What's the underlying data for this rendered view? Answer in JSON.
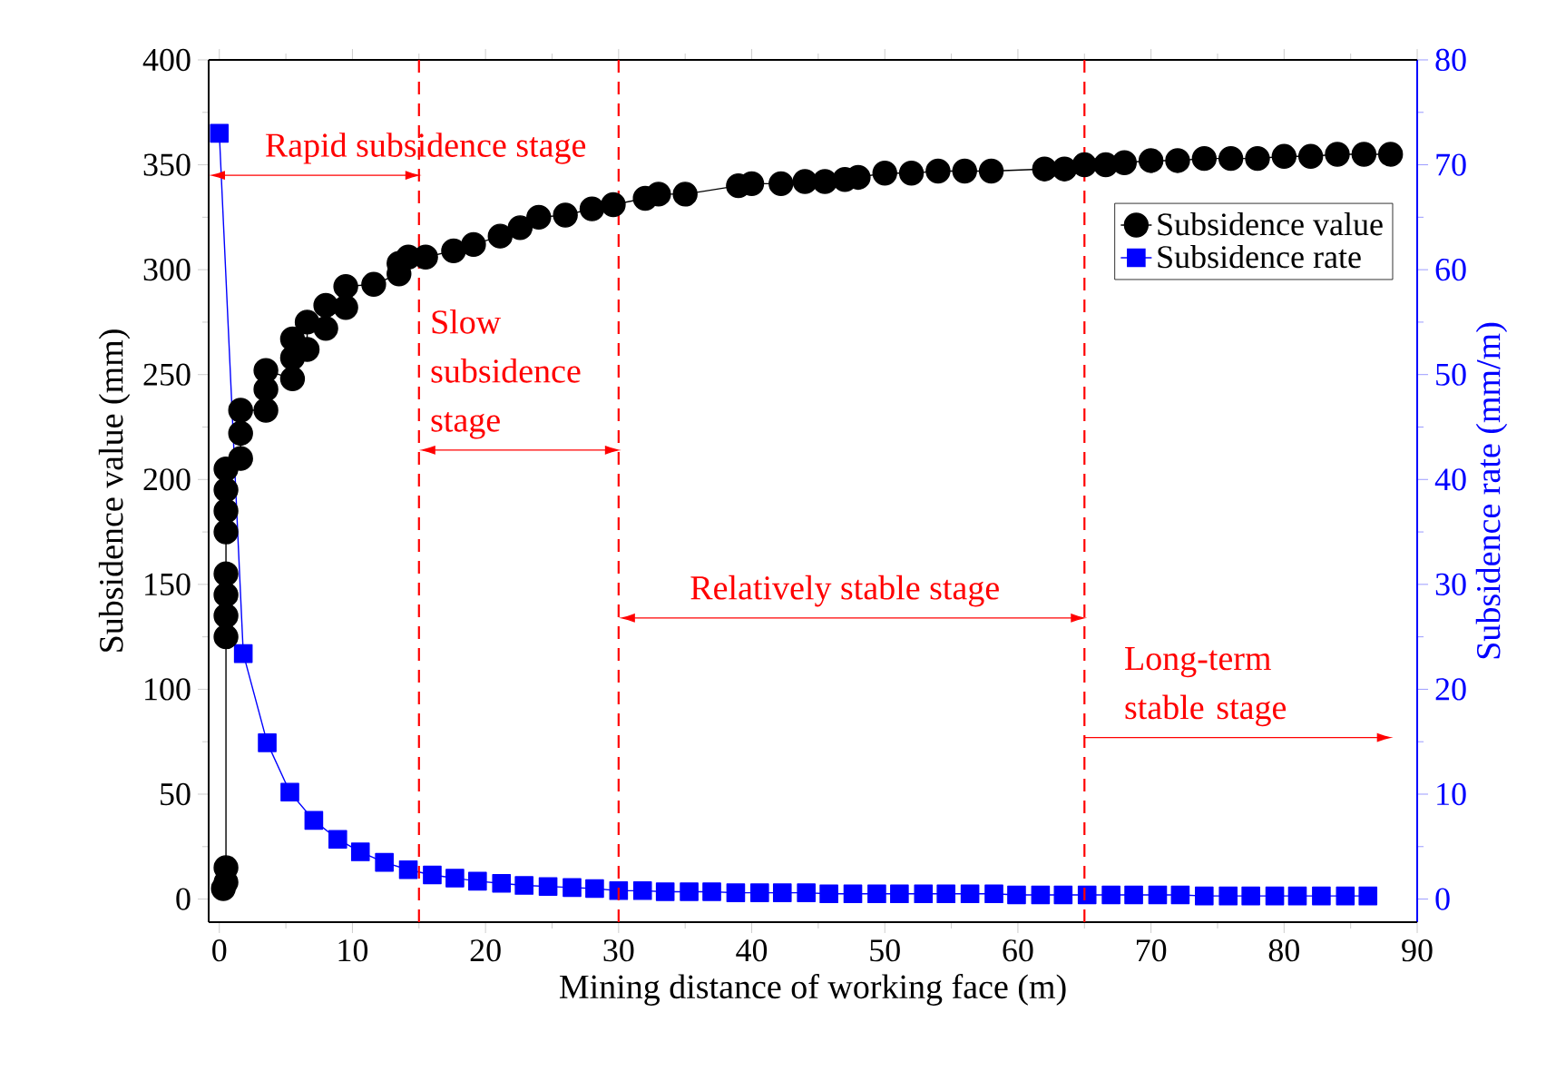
{
  "chart_data": {
    "type": "line",
    "xlabel": "Mining distance of working face  (m)",
    "ylabel": "Subsidence value (mm)",
    "y2label": "Subsidence rate (mm/m)",
    "xlim": [
      -0.8,
      90
    ],
    "xticks": [
      0,
      10,
      20,
      30,
      40,
      50,
      60,
      70,
      80,
      90
    ],
    "ylim": [
      -11,
      400
    ],
    "yticks": [
      0,
      50,
      100,
      150,
      200,
      250,
      300,
      350,
      400
    ],
    "y2lim": [
      -2.2,
      80
    ],
    "y2ticks": [
      0,
      10,
      20,
      30,
      40,
      50,
      60,
      70,
      80
    ],
    "grid": false,
    "legend": "top right",
    "line_style": "solid",
    "series": [
      {
        "name": "Subsidence value",
        "color": "#000000",
        "marker": "circle",
        "x": [
          0.3,
          0.5,
          0.5,
          0.5,
          0.5,
          0.5,
          0.5,
          0.5,
          0.5,
          0.5,
          0.5,
          1.6,
          1.6,
          1.6,
          3.5,
          3.5,
          3.5,
          5.5,
          5.5,
          5.5,
          6.6,
          6.6,
          8,
          8,
          9.5,
          9.5,
          11.6,
          13.5,
          13.5,
          14.2,
          15.5,
          17.6,
          19.1,
          21.1,
          22.6,
          24,
          26,
          28,
          29.6,
          32,
          33,
          35,
          39,
          40,
          42.2,
          44,
          45.5,
          47,
          48,
          50,
          52,
          54,
          56,
          58,
          62,
          63.5,
          65,
          66.6,
          68,
          70,
          72,
          74,
          76,
          78,
          80,
          82,
          84,
          86,
          88
        ],
        "values": [
          5,
          8,
          15,
          125,
          135,
          145,
          155,
          175,
          185,
          195,
          205,
          210,
          222,
          233,
          233,
          243,
          252,
          248,
          258,
          267,
          262,
          275,
          272,
          283,
          282,
          292,
          293,
          298,
          303,
          306,
          306,
          309,
          312,
          316,
          320,
          325,
          326,
          329,
          331,
          334,
          336,
          336,
          340,
          341,
          341,
          342,
          342,
          343,
          344,
          346,
          346,
          347,
          347,
          347,
          348,
          348,
          350,
          350,
          351,
          352,
          352,
          353,
          353,
          353,
          354,
          354,
          355,
          355,
          355
        ]
      },
      {
        "name": "Subsidence rate",
        "color": "#0000ff",
        "marker": "square",
        "axis": "y2",
        "x": [
          0,
          1.8,
          3.6,
          5.3,
          7.1,
          8.9,
          10.6,
          12.4,
          14.2,
          16,
          17.7,
          19.4,
          21.2,
          22.9,
          24.7,
          26.5,
          28.2,
          30,
          31.8,
          33.5,
          35.3,
          37,
          38.8,
          40.6,
          42.3,
          44.1,
          45.8,
          47.6,
          49.4,
          51.1,
          52.9,
          54.6,
          56.4,
          58.2,
          59.9,
          61.7,
          63.4,
          65.2,
          67,
          68.7,
          70.5,
          72.2,
          74,
          75.8,
          77.5,
          79.3,
          81,
          82.8,
          84.6,
          86.3
        ],
        "values": [
          73,
          23.4,
          14.9,
          10.2,
          7.5,
          5.7,
          4.5,
          3.5,
          2.8,
          2.3,
          2,
          1.7,
          1.5,
          1.3,
          1.2,
          1.1,
          1,
          0.8,
          0.8,
          0.7,
          0.7,
          0.7,
          0.6,
          0.6,
          0.6,
          0.6,
          0.5,
          0.5,
          0.5,
          0.5,
          0.5,
          0.5,
          0.5,
          0.5,
          0.4,
          0.4,
          0.4,
          0.4,
          0.4,
          0.4,
          0.4,
          0.4,
          0.3,
          0.3,
          0.3,
          0.3,
          0.3,
          0.3,
          0.3,
          0.3
        ]
      }
    ],
    "ref_lines": [
      {
        "axis": "x",
        "value": 15,
        "color": "#ff0000",
        "line_style": "dashed"
      },
      {
        "axis": "x",
        "value": 30,
        "color": "#ff0000",
        "line_style": "dashed"
      },
      {
        "axis": "x",
        "value": 65,
        "color": "#ff0000",
        "line_style": "dashed"
      }
    ],
    "annotations": [
      "Rapid subsidence stage",
      "Slow subsidence stage",
      "Relatively stable stage",
      "Long-term stable stage"
    ]
  }
}
